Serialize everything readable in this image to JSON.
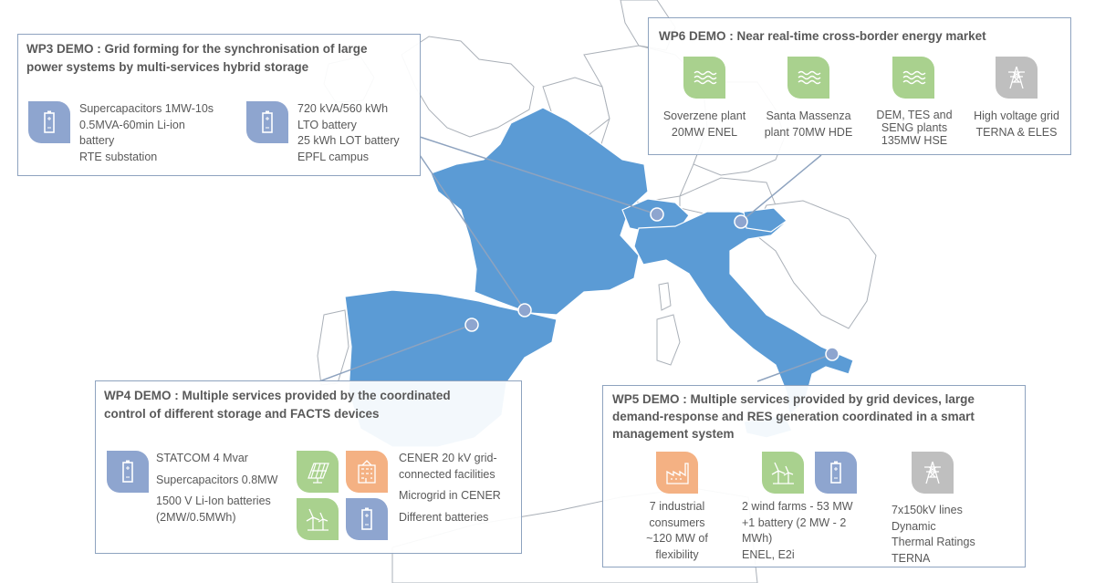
{
  "wp3": {
    "title_line1": "WP3 DEMO : Grid forming for the synchronisation of large",
    "title_line2": "power systems by multi-services hybrid storage",
    "item1": [
      "Supercapacitors 1MW-10s",
      "0.5MVA-60min Li-ion",
      "battery",
      "RTE substation"
    ],
    "item2": [
      "720 kVA/560 kWh",
      "LTO battery",
      "25 kWh LOT battery",
      "EPFL campus"
    ]
  },
  "wp6": {
    "title": "WP6 DEMO : Near real-time cross-border energy market",
    "items": [
      {
        "lines": [
          "Soverzene plant",
          "20MW ENEL"
        ],
        "icon": "hydro-icon"
      },
      {
        "lines": [
          "Santa Massenza",
          "plant 70MW HDE"
        ],
        "icon": "hydro-icon"
      },
      {
        "lines": [
          "DEM, TES and",
          "SENG plants",
          "135MW HSE"
        ],
        "icon": "hydro-icon"
      },
      {
        "lines": [
          "High voltage grid",
          "TERNA & ELES"
        ],
        "icon": "pylon-icon"
      }
    ]
  },
  "wp4": {
    "title_line1": "WP4 DEMO : Multiple services provided by the coordinated",
    "title_line2": "control of different storage and FACTS devices",
    "left": [
      "STATCOM 4 Mvar",
      "Supercapacitors 0.8MW",
      "1500 V Li-Ion batteries",
      "(2MW/0.5MWh)"
    ],
    "right": [
      "CENER 20 kV grid-",
      "connected facilities",
      "Microgrid in CENER",
      "Different batteries"
    ]
  },
  "wp5": {
    "title_line1": "WP5 DEMO : Multiple services provided by grid devices, large",
    "title_line2": "demand-response and RES generation coordinated in a smart",
    "title_line3": "management system",
    "item1": [
      "7 industrial",
      "consumers",
      "~120 MW of",
      "flexibility"
    ],
    "item2": [
      "2 wind farms - 53 MW",
      "+1 battery (2 MW - 2",
      "MWh)",
      "ENEL, E2i"
    ],
    "item3": [
      "7x150kV lines",
      "Dynamic",
      "Thermal Ratings",
      "TERNA"
    ]
  },
  "colors": {
    "highlight": "#5b9bd5",
    "land": "#ffffff",
    "border": "#aab0b8",
    "panel_border": "#8ea3bf",
    "battery_icon": "#8ea5cf",
    "green_icon": "#a9d18e",
    "orange_icon": "#f4b183",
    "grey_icon": "#bfbfbf"
  }
}
